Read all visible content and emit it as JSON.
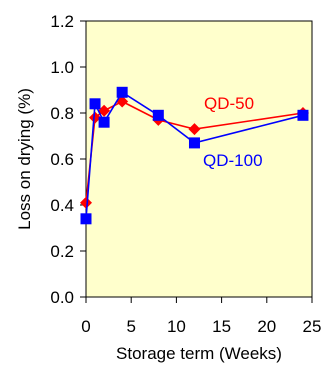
{
  "chart_data": {
    "type": "line",
    "title": "",
    "xlabel": "Storage term (Weeks)",
    "ylabel": "Loss on drying (%)",
    "xlim": [
      0,
      25
    ],
    "ylim": [
      0.0,
      1.2
    ],
    "x_ticks": [
      0,
      5,
      10,
      15,
      20,
      25
    ],
    "y_ticks": [
      "0.0",
      "0.2",
      "0.4",
      "0.6",
      "0.8",
      "1.0",
      "1.2"
    ],
    "plot_background": "#ffffcc",
    "grid": false,
    "series": [
      {
        "name": "QD-50",
        "color": "#ff0000",
        "marker": "diamond",
        "x": [
          0,
          1,
          2,
          4,
          8,
          12,
          24
        ],
        "y": [
          0.41,
          0.78,
          0.81,
          0.85,
          0.77,
          0.73,
          0.8
        ]
      },
      {
        "name": "QD-100",
        "color": "#0000ff",
        "marker": "square",
        "x": [
          0,
          1,
          2,
          4,
          8,
          12,
          24
        ],
        "y": [
          0.34,
          0.84,
          0.76,
          0.89,
          0.79,
          0.67,
          0.79
        ]
      }
    ]
  }
}
